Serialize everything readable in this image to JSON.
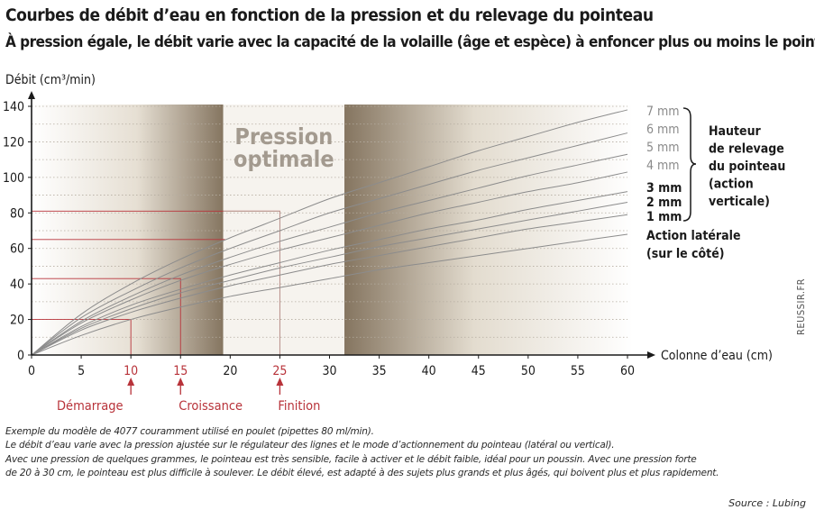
{
  "header": {
    "title": "Courbes de débit d’eau en fonction de la pression et du relevage du pointeau",
    "subtitle": "À pression égale, le débit varie avec la capacité de la volaille (âge et espèce) à enfoncer plus ou moins le pointeau"
  },
  "chart_data": {
    "type": "line",
    "ylabel": "Débit (cm³/min)",
    "xlabel": "Colonne d’eau (cm)",
    "xlim": [
      0,
      60
    ],
    "ylim": [
      0,
      140
    ],
    "xticks": [
      0,
      5,
      10,
      15,
      20,
      25,
      30,
      35,
      40,
      45,
      50,
      55,
      60
    ],
    "yticks": [
      0,
      20,
      40,
      60,
      80,
      100,
      120,
      140
    ],
    "grid": "horizontal dotted",
    "optimal_zone": {
      "label_line1": "Pression",
      "label_line2": "optimale",
      "x_start": 19.3,
      "x_end": 31.5
    },
    "series": [
      {
        "name": "7 mm",
        "x": [
          0,
          5,
          10,
          15,
          20,
          25,
          30,
          35,
          40,
          45,
          50,
          55,
          60
        ],
        "values": [
          0,
          23,
          40,
          54,
          66,
          77,
          88,
          97,
          106,
          115,
          123,
          131,
          138
        ]
      },
      {
        "name": "6 mm",
        "x": [
          0,
          5,
          10,
          15,
          20,
          25,
          30,
          35,
          40,
          45,
          50,
          55,
          60
        ],
        "values": [
          0,
          21,
          36,
          49,
          60,
          70,
          80,
          88,
          96,
          104,
          111,
          118,
          125
        ]
      },
      {
        "name": "5 mm",
        "x": [
          0,
          5,
          10,
          15,
          20,
          25,
          30,
          35,
          40,
          45,
          50,
          55,
          60
        ],
        "values": [
          0,
          19,
          33,
          45,
          55,
          64,
          72,
          80,
          87,
          94,
          101,
          107,
          113
        ]
      },
      {
        "name": "4 mm",
        "x": [
          0,
          5,
          10,
          15,
          20,
          25,
          30,
          35,
          40,
          45,
          50,
          55,
          60
        ],
        "values": [
          0,
          18,
          31,
          42,
          51,
          59,
          66,
          73,
          80,
          86,
          92,
          97,
          103
        ]
      },
      {
        "name": "3 mm",
        "x": [
          0,
          5,
          10,
          15,
          20,
          25,
          30,
          35,
          40,
          45,
          50,
          55,
          60
        ],
        "values": [
          0,
          16,
          28,
          37,
          45,
          52,
          59,
          65,
          71,
          76,
          82,
          87,
          92
        ]
      },
      {
        "name": "2 mm",
        "x": [
          0,
          5,
          10,
          15,
          20,
          25,
          30,
          35,
          40,
          45,
          50,
          55,
          60
        ],
        "values": [
          0,
          15,
          26,
          35,
          42,
          49,
          55,
          61,
          66,
          71,
          76,
          81,
          86
        ]
      },
      {
        "name": "1 mm",
        "x": [
          0,
          5,
          10,
          15,
          20,
          25,
          30,
          35,
          40,
          45,
          50,
          55,
          60
        ],
        "values": [
          0,
          14,
          24,
          32,
          39,
          45,
          51,
          56,
          61,
          66,
          71,
          75,
          79
        ]
      },
      {
        "name": "Action latérale",
        "x": [
          0,
          5,
          10,
          15,
          20,
          25,
          30,
          35,
          40,
          45,
          50,
          55,
          60
        ],
        "values": [
          0,
          11,
          20,
          27,
          33,
          38,
          43,
          48,
          52,
          56,
          60,
          64,
          68
        ]
      }
    ],
    "series_label_colors": [
      "#8a8a8a",
      "#8a8a8a",
      "#8a8a8a",
      "#8a8a8a",
      "#1a1a1a",
      "#1a1a1a",
      "#1a1a1a",
      "#1a1a1a"
    ],
    "legend_group": [
      "Hauteur",
      "de relevage",
      "du pointeau",
      "(action",
      "verticale)"
    ],
    "lateral_label": [
      "Action latérale",
      "(sur le côté)"
    ],
    "markers": [
      {
        "label": "Démarrage",
        "x": 10,
        "y": 20
      },
      {
        "label": "Croissance",
        "x": 15,
        "y": 43
      },
      {
        "label": "Finition",
        "x": 25,
        "y": 81
      }
    ],
    "extra_reference_y": 65
  },
  "notes": [
    "Exemple du modèle de 4077 couramment utilisé en poulet (pipettes 80 ml/min).",
    "Le débit d’eau varie avec la pression ajustée sur le régulateur des lignes et le mode d’actionnement du pointeau (latéral ou vertical).",
    "Avec une pression de quelques grammes, le pointeau est très sensible, facile à activer et le débit faible, idéal pour un poussin. Avec une pression forte",
    "de 20 à 30 cm, le pointeau est plus difficile à soulever. Le débit élevé, est adapté à des sujets plus grands et plus âgés, qui boivent plus et plus rapidement."
  ],
  "source": "Source : Lubing",
  "credit": "REUSSIR.FR",
  "colors": {
    "marker_red": "#b8333a",
    "curve": "#8c8c8c",
    "zone_dark": "#827460",
    "zone_light": "#f6f3ee",
    "grid": "#b5ada1"
  }
}
